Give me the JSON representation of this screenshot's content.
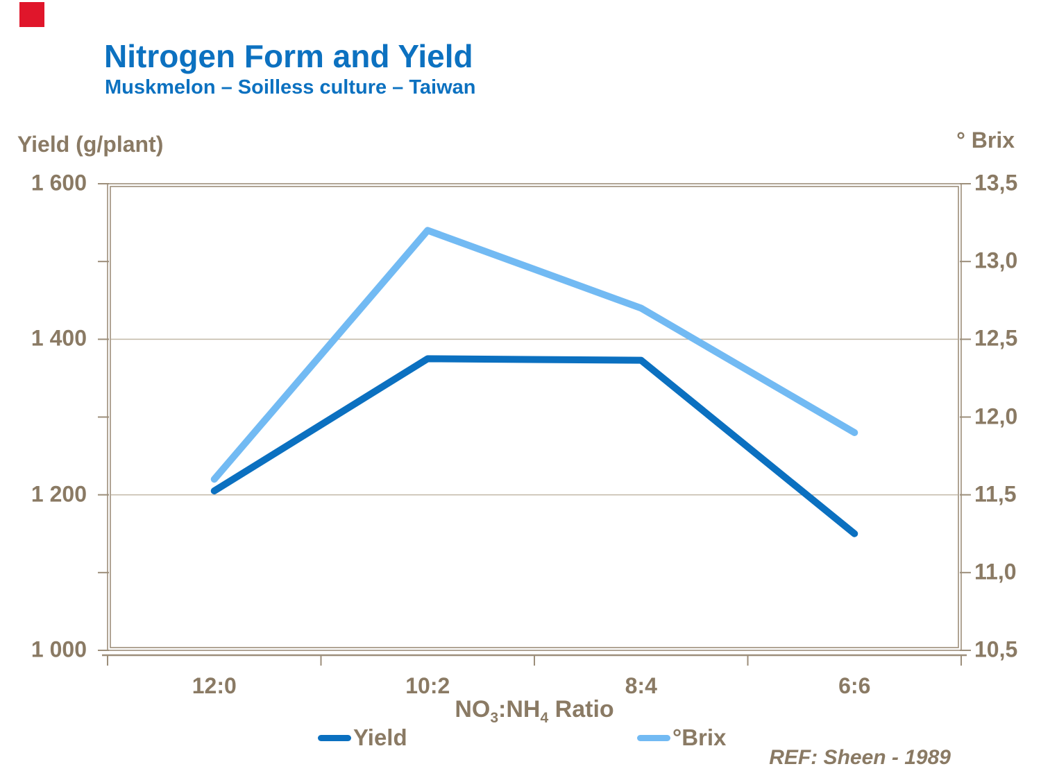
{
  "slide": {
    "accent_square_color": "#E0162B"
  },
  "header": {
    "title": "Nitrogen Form and Yield",
    "subtitle": "Muskmelon – Soilless culture – Taiwan"
  },
  "xaxis_title": {
    "p1": "NO",
    "sub1": "3",
    "p2": ":NH",
    "sub2": "4",
    "p3": " Ratio"
  },
  "footer": {
    "ref": "REF: Sheen - 1989"
  },
  "colors": {
    "title_blue": "#0C71C0",
    "axis_text": "#8A7A64",
    "gridline": "#C6BCAC",
    "frame": "#9C8E7A",
    "yield_line": "#0B70C0",
    "brix_line": "#72BAF3"
  },
  "chart_data": {
    "type": "line",
    "title": "Nitrogen Form and Yield",
    "subtitle": "Muskmelon – Soilless culture – Taiwan",
    "categories": [
      "12:0",
      "10:2",
      "8:4",
      "6:6"
    ],
    "xlabel": "NO3:NH4 Ratio",
    "series": [
      {
        "name": "Yield",
        "axis": "left",
        "color": "#0B70C0",
        "values": [
          1205,
          1375,
          1373,
          1150
        ]
      },
      {
        "name": "°Brix",
        "axis": "right",
        "color": "#72BAF3",
        "values": [
          11.6,
          13.2,
          12.7,
          11.9
        ]
      }
    ],
    "y_left": {
      "title": "Yield (g/plant)",
      "min": 1000,
      "max": 1600,
      "minor_step": 100,
      "tick_values": [
        1600,
        1400,
        1200,
        1000
      ],
      "tick_labels": [
        "1 600",
        "1 400",
        "1 200",
        "1 000"
      ],
      "gridlines": [
        1400,
        1200
      ]
    },
    "y_right": {
      "title": "° Brix",
      "min": 10.5,
      "max": 13.5,
      "tick_values": [
        13.5,
        13.0,
        12.5,
        12.0,
        11.5,
        11.0,
        10.5
      ],
      "tick_labels": [
        "13,5",
        "13,0",
        "12,5",
        "12,0",
        "11,5",
        "11,0",
        "10,5"
      ]
    },
    "legend_position": "bottom",
    "grid": "horizontal-major"
  }
}
